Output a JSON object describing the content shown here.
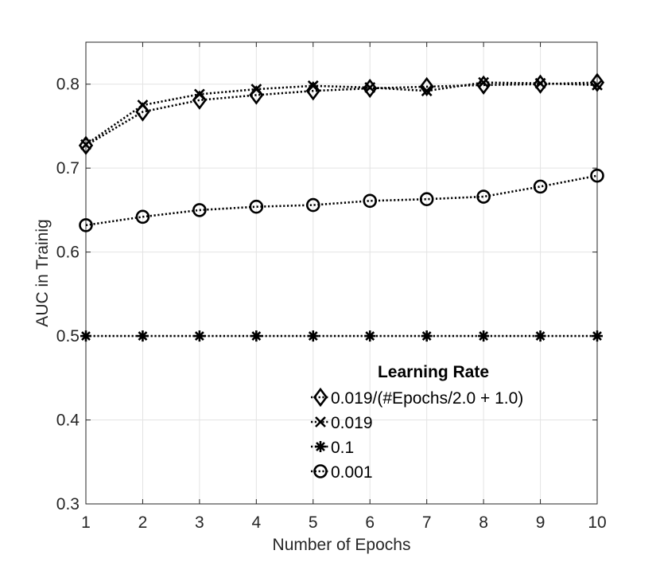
{
  "chart_data": {
    "type": "line",
    "title": "",
    "xlabel": "Number of Epochs",
    "ylabel": "AUC in Trainig",
    "xlim": [
      1,
      10
    ],
    "ylim": [
      0.3,
      0.85
    ],
    "x_ticks": [
      1,
      2,
      3,
      4,
      5,
      6,
      7,
      8,
      9,
      10
    ],
    "x_tick_labels": [
      "1",
      "2",
      "3",
      "4",
      "5",
      "6",
      "7",
      "8",
      "9",
      "10"
    ],
    "y_ticks": [
      0.3,
      0.4,
      0.5,
      0.6,
      0.7,
      0.8
    ],
    "y_tick_labels": [
      "0.3",
      "0.4",
      "0.5",
      "0.6",
      "0.7",
      "0.8"
    ],
    "grid": true,
    "legend": {
      "title": "Learning Rate",
      "placement": "lower-right"
    },
    "x": [
      1,
      2,
      3,
      4,
      5,
      6,
      7,
      8,
      9,
      10
    ],
    "series": [
      {
        "name": "0.019/(#Epochs/2.0 + 1.0)",
        "marker": "diamond",
        "values": [
          0.727,
          0.767,
          0.781,
          0.787,
          0.792,
          0.795,
          0.797,
          0.799,
          0.8,
          0.802
        ]
      },
      {
        "name": "0.019",
        "marker": "x",
        "values": [
          0.728,
          0.775,
          0.788,
          0.794,
          0.798,
          0.796,
          0.792,
          0.802,
          0.801,
          0.799
        ]
      },
      {
        "name": "0.1",
        "marker": "asterisk",
        "values": [
          0.5,
          0.5,
          0.5,
          0.5,
          0.5,
          0.5,
          0.5,
          0.5,
          0.5,
          0.5
        ]
      },
      {
        "name": "0.001",
        "marker": "circle",
        "values": [
          0.632,
          0.642,
          0.65,
          0.654,
          0.656,
          0.661,
          0.663,
          0.666,
          0.678,
          0.691
        ]
      }
    ]
  }
}
